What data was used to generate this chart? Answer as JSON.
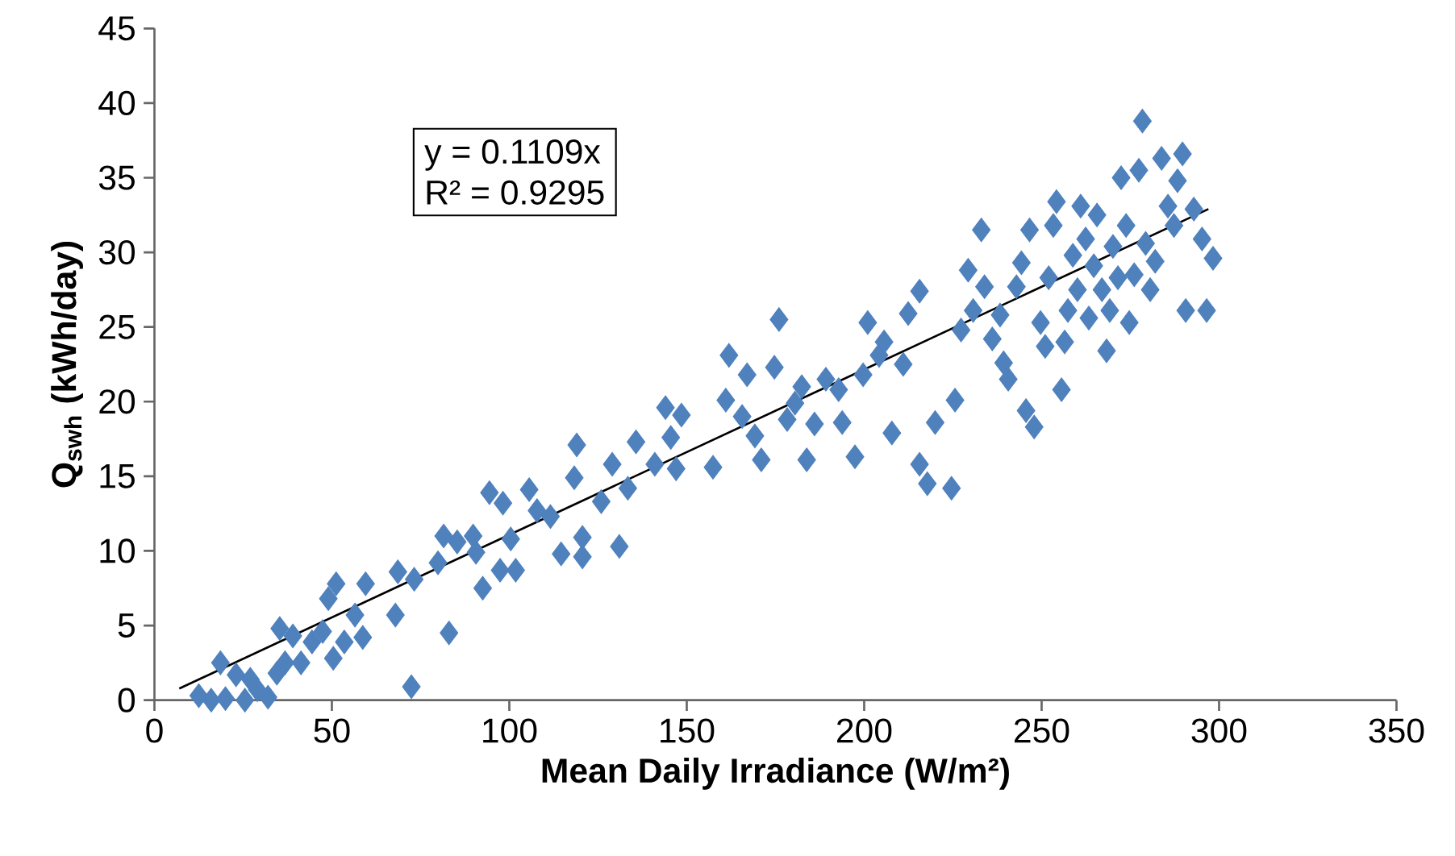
{
  "chart_data": {
    "type": "scatter",
    "xlabel": "Mean Daily Irradiance (W/m²)",
    "ylabel": "Q$_{swh}$ (kWh/day)",
    "annotations": [
      "y = 0.1109x",
      "R² = 0.9295"
    ],
    "xlim": [
      0,
      350
    ],
    "xticks": [
      0,
      50,
      100,
      150,
      200,
      250,
      300,
      350
    ],
    "ylim": [
      0,
      45
    ],
    "yticks": [
      0,
      5,
      10,
      15,
      20,
      25,
      30,
      35,
      40,
      45
    ],
    "grid": false,
    "series": [
      {
        "color": "#4f81bd",
        "marker": "diamond",
        "x": [
          12.5,
          16,
          18.6,
          20,
          23,
          25.5,
          27,
          29,
          32,
          34.5,
          35.3,
          36.8,
          39,
          41.3,
          44.4,
          47.4,
          49,
          50.4,
          51.2,
          53.5,
          56.5,
          58.7,
          59.5,
          67.9,
          68.6,
          72.4,
          73.2,
          79.9,
          81.5,
          83,
          85.3,
          89.8,
          90.6,
          92.5,
          94.4,
          98.2,
          97.4,
          100.4,
          101.8,
          105.6,
          107.8,
          111.6,
          114.6,
          119,
          118.3,
          120.6,
          120.6,
          125.9,
          129,
          131,
          133.4,
          135.7,
          141,
          144,
          145.5,
          147,
          148.5,
          157.4,
          161,
          161.9,
          165.6,
          167,
          169.2,
          171,
          174.7,
          176,
          178.3,
          180.5,
          182.4,
          183.8,
          186,
          189.2,
          192.8,
          193.8,
          197.4,
          199.7,
          201,
          204.2,
          205.6,
          207.8,
          211,
          212.4,
          215.6,
          215.6,
          217.8,
          220,
          224.6,
          225.6,
          227.3,
          229.3,
          230.7,
          233.9,
          233,
          236.1,
          238.3,
          239.3,
          240.6,
          242.9,
          244.3,
          245.6,
          246.6,
          247.9,
          249.7,
          251,
          252,
          253.3,
          254.2,
          255.6,
          256.5,
          257.4,
          258.8,
          260.1,
          261,
          262.4,
          263.3,
          264.7,
          265.6,
          267,
          268.3,
          269.2,
          270.1,
          271.5,
          272.4,
          273.8,
          274.7,
          276.1,
          277.4,
          278.4,
          279.3,
          280.6,
          282,
          283.8,
          285.6,
          287.3,
          288.3,
          289.7,
          290.6,
          292.9,
          295.2,
          296.5,
          298.3
        ],
        "values": [
          0.3,
          0,
          2.5,
          0.1,
          1.7,
          0,
          1.4,
          0.7,
          0.2,
          1.8,
          4.8,
          2.5,
          4.3,
          2.5,
          3.9,
          4.6,
          6.8,
          2.8,
          7.8,
          3.9,
          5.7,
          4.2,
          7.8,
          5.7,
          8.6,
          0.9,
          8.1,
          9.2,
          11,
          4.5,
          10.6,
          11,
          9.9,
          7.5,
          13.9,
          13.2,
          8.7,
          10.8,
          8.7,
          14.1,
          12.7,
          12.3,
          9.8,
          17.1,
          14.9,
          10.9,
          9.6,
          13.3,
          15.8,
          10.3,
          14.2,
          17.3,
          15.8,
          19.6,
          17.6,
          15.5,
          19.1,
          15.6,
          20.1,
          23.1,
          19,
          21.8,
          17.7,
          16.1,
          22.3,
          25.5,
          18.8,
          19.9,
          21,
          16.1,
          18.5,
          21.5,
          20.8,
          18.6,
          16.3,
          21.8,
          25.3,
          23.1,
          24,
          17.9,
          22.5,
          25.9,
          27.4,
          15.8,
          14.5,
          18.6,
          14.2,
          20.1,
          24.8,
          28.8,
          26.1,
          27.7,
          31.5,
          24.2,
          25.8,
          22.6,
          21.5,
          27.7,
          29.3,
          19.4,
          31.5,
          18.3,
          25.3,
          23.7,
          28.3,
          31.8,
          33.4,
          20.8,
          24,
          26.1,
          29.8,
          27.5,
          33.1,
          30.9,
          25.6,
          29.1,
          32.5,
          27.5,
          23.4,
          26.1,
          30.4,
          28.3,
          35,
          31.8,
          25.3,
          28.5,
          35.5,
          38.8,
          30.6,
          27.5,
          29.4,
          36.3,
          33.1,
          31.8,
          34.8,
          36.6,
          26.1,
          32.9,
          30.9,
          26.1,
          29.6
        ]
      },
      {
        "type": "line",
        "color": "#000000",
        "marker": "none",
        "x": [
          7,
          297
        ],
        "values": [
          0.78,
          32.9
        ]
      }
    ]
  }
}
